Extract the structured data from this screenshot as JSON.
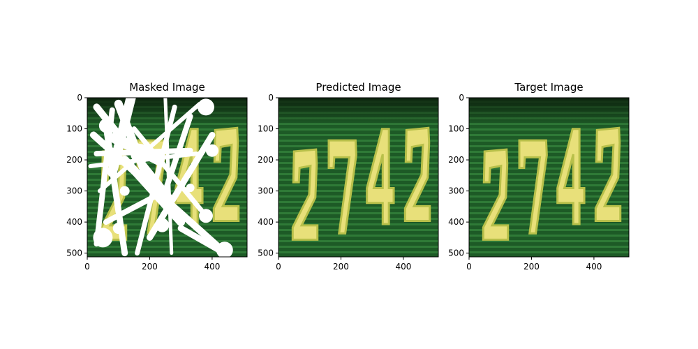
{
  "chart_data": [
    {
      "type": "image",
      "title": "Masked Image",
      "digits": "2742",
      "masked": true,
      "xticks": [
        "0",
        "200",
        "400"
      ],
      "yticks": [
        "0",
        "100",
        "200",
        "300",
        "400",
        "500"
      ],
      "xlim": [
        0,
        512
      ],
      "ylim": [
        512,
        0
      ]
    },
    {
      "type": "image",
      "title": "Predicted Image",
      "digits": "2742",
      "masked": false,
      "xticks": [
        "0",
        "200",
        "400"
      ],
      "yticks": [
        "0",
        "100",
        "200",
        "300",
        "400",
        "500"
      ],
      "xlim": [
        0,
        512
      ],
      "ylim": [
        512,
        0
      ]
    },
    {
      "type": "image",
      "title": "Target Image",
      "digits": "2742",
      "masked": false,
      "xticks": [
        "0",
        "200",
        "400"
      ],
      "yticks": [
        "0",
        "100",
        "200",
        "300",
        "400",
        "500"
      ],
      "xlim": [
        0,
        512
      ],
      "ylim": [
        512,
        0
      ]
    }
  ],
  "colors": {
    "background_green": "#1d5a26",
    "stripe_green": "#2f7a37",
    "digit_yellow": "#e8e07a",
    "digit_edge": "#b8c04a",
    "mask_white": "#ffffff"
  }
}
